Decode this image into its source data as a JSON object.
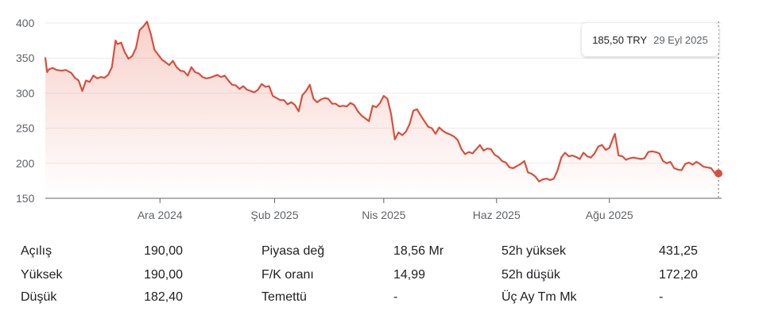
{
  "chart_data": {
    "type": "area",
    "title": "",
    "xlabel": "",
    "ylabel": "",
    "ylim": [
      150,
      400
    ],
    "yticks": [
      400,
      350,
      300,
      250,
      200,
      150
    ],
    "xtick_labels": [
      {
        "label": "Ara 2024",
        "x": "2024-12-01"
      },
      {
        "label": "Şub 2025",
        "x": "2025-02-01"
      },
      {
        "label": "Nis 2025",
        "x": "2025-04-01"
      },
      {
        "label": "Haz 2025",
        "x": "2025-06-01"
      },
      {
        "label": "Ağu 2025",
        "x": "2025-08-01"
      }
    ],
    "grid": true,
    "line_color": "#d8503c",
    "series": [
      {
        "points": [
          [
            "2024-09-30",
            350
          ],
          [
            "2024-10-01",
            330
          ],
          [
            "2024-10-02",
            334
          ],
          [
            "2024-10-04",
            336
          ],
          [
            "2024-10-06",
            333
          ],
          [
            "2024-10-09",
            332
          ],
          [
            "2024-10-11",
            333
          ],
          [
            "2024-10-14",
            329
          ],
          [
            "2024-10-16",
            322
          ],
          [
            "2024-10-18",
            318
          ],
          [
            "2024-10-20",
            303
          ],
          [
            "2024-10-22",
            318
          ],
          [
            "2024-10-24",
            316
          ],
          [
            "2024-10-26",
            325
          ],
          [
            "2024-10-28",
            321
          ],
          [
            "2024-10-30",
            323
          ],
          [
            "2024-11-01",
            322
          ],
          [
            "2024-11-03",
            326
          ],
          [
            "2024-11-05",
            337
          ],
          [
            "2024-11-07",
            375
          ],
          [
            "2024-11-08",
            370
          ],
          [
            "2024-11-10",
            372
          ],
          [
            "2024-11-12",
            358
          ],
          [
            "2024-11-14",
            349
          ],
          [
            "2024-11-16",
            353
          ],
          [
            "2024-11-18",
            364
          ],
          [
            "2024-11-20",
            390
          ],
          [
            "2024-11-22",
            395
          ],
          [
            "2024-11-24",
            402
          ],
          [
            "2024-11-26",
            385
          ],
          [
            "2024-11-28",
            362
          ],
          [
            "2024-11-30",
            355
          ],
          [
            "2024-12-02",
            348
          ],
          [
            "2024-12-04",
            344
          ],
          [
            "2024-12-06",
            340
          ],
          [
            "2024-12-08",
            346
          ],
          [
            "2024-12-10",
            337
          ],
          [
            "2024-12-12",
            332
          ],
          [
            "2024-12-14",
            331
          ],
          [
            "2024-12-16",
            325
          ],
          [
            "2024-12-18",
            337
          ],
          [
            "2024-12-20",
            330
          ],
          [
            "2024-12-22",
            328
          ],
          [
            "2024-12-24",
            323
          ],
          [
            "2024-12-26",
            321
          ],
          [
            "2024-12-28",
            322
          ],
          [
            "2024-12-30",
            324
          ],
          [
            "2025-01-01",
            326
          ],
          [
            "2025-01-03",
            323
          ],
          [
            "2025-01-05",
            325
          ],
          [
            "2025-01-07",
            318
          ],
          [
            "2025-01-09",
            312
          ],
          [
            "2025-01-11",
            311
          ],
          [
            "2025-01-13",
            306
          ],
          [
            "2025-01-15",
            310
          ],
          [
            "2025-01-17",
            305
          ],
          [
            "2025-01-19",
            303
          ],
          [
            "2025-01-21",
            301
          ],
          [
            "2025-01-23",
            305
          ],
          [
            "2025-01-25",
            313
          ],
          [
            "2025-01-27",
            309
          ],
          [
            "2025-01-29",
            310
          ],
          [
            "2025-01-31",
            296
          ],
          [
            "2025-02-02",
            293
          ],
          [
            "2025-02-04",
            290
          ],
          [
            "2025-02-06",
            290
          ],
          [
            "2025-02-08",
            284
          ],
          [
            "2025-02-10",
            287
          ],
          [
            "2025-02-12",
            283
          ],
          [
            "2025-02-14",
            274
          ],
          [
            "2025-02-16",
            297
          ],
          [
            "2025-02-18",
            303
          ],
          [
            "2025-02-20",
            312
          ],
          [
            "2025-02-22",
            292
          ],
          [
            "2025-02-24",
            287
          ],
          [
            "2025-02-26",
            291
          ],
          [
            "2025-02-28",
            293
          ],
          [
            "2025-03-02",
            292
          ],
          [
            "2025-03-04",
            285
          ],
          [
            "2025-03-06",
            285
          ],
          [
            "2025-03-08",
            281
          ],
          [
            "2025-03-10",
            282
          ],
          [
            "2025-03-12",
            281
          ],
          [
            "2025-03-14",
            286
          ],
          [
            "2025-03-16",
            283
          ],
          [
            "2025-03-18",
            274
          ],
          [
            "2025-03-20",
            268
          ],
          [
            "2025-03-22",
            264
          ],
          [
            "2025-03-24",
            260
          ],
          [
            "2025-03-26",
            282
          ],
          [
            "2025-03-28",
            280
          ],
          [
            "2025-03-30",
            286
          ],
          [
            "2025-04-01",
            296
          ],
          [
            "2025-04-03",
            292
          ],
          [
            "2025-04-05",
            270
          ],
          [
            "2025-04-07",
            234
          ],
          [
            "2025-04-09",
            244
          ],
          [
            "2025-04-11",
            240
          ],
          [
            "2025-04-13",
            245
          ],
          [
            "2025-04-15",
            256
          ],
          [
            "2025-04-17",
            275
          ],
          [
            "2025-04-19",
            277
          ],
          [
            "2025-04-21",
            268
          ],
          [
            "2025-04-23",
            260
          ],
          [
            "2025-04-25",
            252
          ],
          [
            "2025-04-27",
            250
          ],
          [
            "2025-04-29",
            242
          ],
          [
            "2025-05-01",
            251
          ],
          [
            "2025-05-03",
            246
          ],
          [
            "2025-05-05",
            243
          ],
          [
            "2025-05-07",
            241
          ],
          [
            "2025-05-09",
            238
          ],
          [
            "2025-05-11",
            233
          ],
          [
            "2025-05-13",
            220
          ],
          [
            "2025-05-15",
            213
          ],
          [
            "2025-05-17",
            216
          ],
          [
            "2025-05-19",
            214
          ],
          [
            "2025-05-21",
            220
          ],
          [
            "2025-05-23",
            226
          ],
          [
            "2025-05-25",
            218
          ],
          [
            "2025-05-27",
            221
          ],
          [
            "2025-05-29",
            220
          ],
          [
            "2025-05-31",
            212
          ],
          [
            "2025-06-02",
            209
          ],
          [
            "2025-06-04",
            203
          ],
          [
            "2025-06-06",
            201
          ],
          [
            "2025-06-08",
            194
          ],
          [
            "2025-06-10",
            193
          ],
          [
            "2025-06-12",
            196
          ],
          [
            "2025-06-14",
            199
          ],
          [
            "2025-06-16",
            203
          ],
          [
            "2025-06-18",
            187
          ],
          [
            "2025-06-20",
            185
          ],
          [
            "2025-06-22",
            181
          ],
          [
            "2025-06-24",
            174
          ],
          [
            "2025-06-26",
            177
          ],
          [
            "2025-06-28",
            178
          ],
          [
            "2025-06-30",
            176
          ],
          [
            "2025-07-02",
            178
          ],
          [
            "2025-07-04",
            190
          ],
          [
            "2025-07-06",
            208
          ],
          [
            "2025-07-08",
            215
          ],
          [
            "2025-07-10",
            210
          ],
          [
            "2025-07-12",
            211
          ],
          [
            "2025-07-14",
            209
          ],
          [
            "2025-07-16",
            206
          ],
          [
            "2025-07-18",
            215
          ],
          [
            "2025-07-20",
            210
          ],
          [
            "2025-07-22",
            208
          ],
          [
            "2025-07-24",
            214
          ],
          [
            "2025-07-26",
            224
          ],
          [
            "2025-07-28",
            226
          ],
          [
            "2025-07-30",
            219
          ],
          [
            "2025-08-01",
            222
          ],
          [
            "2025-08-03",
            236
          ],
          [
            "2025-08-04",
            242
          ],
          [
            "2025-08-06",
            211
          ],
          [
            "2025-08-08",
            210
          ],
          [
            "2025-08-10",
            205
          ],
          [
            "2025-08-12",
            207
          ],
          [
            "2025-08-14",
            208
          ],
          [
            "2025-08-16",
            207
          ],
          [
            "2025-08-18",
            206
          ],
          [
            "2025-08-20",
            207
          ],
          [
            "2025-08-22",
            216
          ],
          [
            "2025-08-24",
            217
          ],
          [
            "2025-08-26",
            216
          ],
          [
            "2025-08-28",
            214
          ],
          [
            "2025-08-30",
            203
          ],
          [
            "2025-09-01",
            200
          ],
          [
            "2025-09-03",
            202
          ],
          [
            "2025-09-05",
            193
          ],
          [
            "2025-09-07",
            191
          ],
          [
            "2025-09-09",
            190
          ],
          [
            "2025-09-11",
            199
          ],
          [
            "2025-09-13",
            201
          ],
          [
            "2025-09-15",
            198
          ],
          [
            "2025-09-17",
            202
          ],
          [
            "2025-09-19",
            199
          ],
          [
            "2025-09-21",
            195
          ],
          [
            "2025-09-23",
            194
          ],
          [
            "2025-09-25",
            193
          ],
          [
            "2025-09-27",
            186
          ],
          [
            "2025-09-29",
            185.5
          ]
        ]
      }
    ],
    "last_point": {
      "x": "2025-09-29",
      "y": 185.5
    }
  },
  "tooltip": {
    "price": "185,50 TRY",
    "date": "29 Eyl 2025"
  },
  "stats": [
    [
      {
        "label": "Açılış",
        "value": "190,00"
      },
      {
        "label": "Piyasa değ",
        "value": "18,56 Mr"
      },
      {
        "label": "52h yüksek",
        "value": "431,25"
      }
    ],
    [
      {
        "label": "Yüksek",
        "value": "190,00"
      },
      {
        "label": "F/K oranı",
        "value": "14,99"
      },
      {
        "label": "52h düşük",
        "value": "172,20"
      }
    ],
    [
      {
        "label": "Düşük",
        "value": "182,40"
      },
      {
        "label": "Temettü",
        "value": "-"
      },
      {
        "label": "Üç Ay Tm Mk",
        "value": "-"
      }
    ]
  ]
}
